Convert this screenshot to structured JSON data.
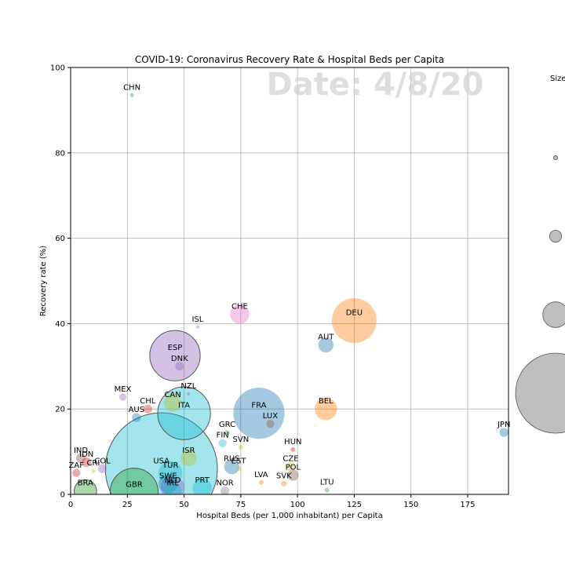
{
  "chart_data": {
    "type": "scatter",
    "title": "COVID-19: Coronavirus Recovery Rate & Hospital Beds per Capita",
    "date_watermark": "Date: 4/8/20",
    "xlabel": "Hospital Beds (per 1,000 inhabitant) per Capita",
    "ylabel": "Recovery rate (%)",
    "xlim": [
      0,
      193
    ],
    "ylim": [
      0,
      100
    ],
    "xticks": [
      0,
      25,
      50,
      75,
      100,
      125,
      150,
      175
    ],
    "yticks": [
      0,
      20,
      40,
      60,
      80,
      100
    ],
    "grid": true,
    "size_legend": {
      "title": "Size",
      "placement": "right",
      "sizes": [
        5,
        15,
        32,
        100
      ]
    },
    "colors": {
      "blue": "#1f77b4",
      "orange": "#ff7f0e",
      "green": "#2ca02c",
      "red": "#d62728",
      "purple": "#9467bd",
      "brown": "#8c564b",
      "pink": "#e377c2",
      "gray": "#7f7f7f",
      "olive": "#bcbd22",
      "cyan": "#17becf"
    },
    "points": [
      {
        "label": "CHN",
        "x": 27,
        "y": 93.5,
        "size": 5,
        "color": "green"
      },
      {
        "label": "CHE",
        "x": 74.5,
        "y": 42.2,
        "size": 24,
        "color": "pink"
      },
      {
        "label": "ISL",
        "x": 56,
        "y": 39.2,
        "size": 4,
        "color": "purple"
      },
      {
        "label": "DEU",
        "x": 125,
        "y": 40.7,
        "size": 56,
        "color": "orange"
      },
      {
        "label": "AUT",
        "x": 112.5,
        "y": 35,
        "size": 19,
        "color": "blue"
      },
      {
        "label": "ESP",
        "x": 46,
        "y": 32.5,
        "size": 63,
        "color": "purple",
        "stroke": true
      },
      {
        "label": "DNK",
        "x": 48,
        "y": 30,
        "size": 11,
        "color": "purple"
      },
      {
        "label": "MEX",
        "x": 23,
        "y": 22.8,
        "size": 9,
        "color": "purple"
      },
      {
        "label": "NZL",
        "x": 52,
        "y": 23.5,
        "size": 4,
        "color": "purple"
      },
      {
        "label": "CAN",
        "x": 45,
        "y": 21.5,
        "size": 22,
        "color": "olive"
      },
      {
        "label": "CHL",
        "x": 34,
        "y": 20,
        "size": 11,
        "color": "red"
      },
      {
        "label": "ITA",
        "x": 50,
        "y": 19,
        "size": 66,
        "color": "cyan",
        "stroke": true
      },
      {
        "label": "AUS",
        "x": 29,
        "y": 18,
        "size": 11,
        "color": "blue"
      },
      {
        "label": "FRA",
        "x": 83,
        "y": 19,
        "size": 64,
        "color": "blue"
      },
      {
        "label": "LUX",
        "x": 88,
        "y": 16.5,
        "size": 10,
        "color": "brown"
      },
      {
        "label": "BEL",
        "x": 112.5,
        "y": 20,
        "size": 28,
        "color": "orange"
      },
      {
        "label": "JPN",
        "x": 191,
        "y": 14.5,
        "size": 11,
        "color": "blue"
      },
      {
        "label": "GRC",
        "x": 69,
        "y": 14.5,
        "size": 6,
        "color": "green"
      },
      {
        "label": "FIN",
        "x": 67,
        "y": 12,
        "size": 10,
        "color": "cyan"
      },
      {
        "label": "SVN",
        "x": 75,
        "y": 11,
        "size": 6,
        "color": "olive"
      },
      {
        "label": "HUN",
        "x": 98,
        "y": 10.5,
        "size": 6,
        "color": "red"
      },
      {
        "label": "IND",
        "x": 4.5,
        "y": 8.5,
        "size": 12,
        "color": "brown"
      },
      {
        "label": "IDN",
        "x": 7,
        "y": 7.5,
        "size": 12,
        "color": "red"
      },
      {
        "label": "ISR",
        "x": 52,
        "y": 8.5,
        "size": 20,
        "color": "olive"
      },
      {
        "label": "ZAF",
        "x": 2.5,
        "y": 5,
        "size": 10,
        "color": "red"
      },
      {
        "label": "CRI",
        "x": 10,
        "y": 5.5,
        "size": 5,
        "color": "olive"
      },
      {
        "label": "COL",
        "x": 14,
        "y": 6,
        "size": 11,
        "color": "purple"
      },
      {
        "label": "USA",
        "x": 40,
        "y": 6,
        "size": 140,
        "color": "cyan",
        "stroke": true
      },
      {
        "label": "RUS",
        "x": 71,
        "y": 6.5,
        "size": 19,
        "color": "blue"
      },
      {
        "label": "EST",
        "x": 74,
        "y": 6,
        "size": 6,
        "color": "olive"
      },
      {
        "label": "TUR",
        "x": 44,
        "y": 5,
        "size": 30,
        "color": "cyan"
      },
      {
        "label": "CZE",
        "x": 97,
        "y": 6.5,
        "size": 10,
        "color": "olive"
      },
      {
        "label": "POL",
        "x": 98,
        "y": 4.5,
        "size": 14,
        "color": "brown"
      },
      {
        "label": "LVA",
        "x": 84,
        "y": 2.8,
        "size": 6,
        "color": "orange"
      },
      {
        "label": "SVK",
        "x": 94,
        "y": 2.5,
        "size": 7,
        "color": "orange"
      },
      {
        "label": "SWE",
        "x": 43,
        "y": 2.5,
        "size": 24,
        "color": "blue"
      },
      {
        "label": "NLD",
        "x": 45,
        "y": 1.5,
        "size": 30,
        "color": "purple"
      },
      {
        "label": "IRL",
        "x": 45,
        "y": 0.8,
        "size": 22,
        "color": "cyan"
      },
      {
        "label": "PRT",
        "x": 58,
        "y": 1.5,
        "size": 24,
        "color": "cyan"
      },
      {
        "label": "NOR",
        "x": 68,
        "y": 0.8,
        "size": 11,
        "color": "gray"
      },
      {
        "label": "LTU",
        "x": 113,
        "y": 1,
        "size": 6,
        "color": "green"
      },
      {
        "label": "BRA",
        "x": 6.5,
        "y": 0.8,
        "size": 28,
        "color": "green",
        "stroke": true
      },
      {
        "label": "GBR",
        "x": 28,
        "y": 0.5,
        "size": 60,
        "color": "green",
        "stroke": true
      }
    ]
  }
}
